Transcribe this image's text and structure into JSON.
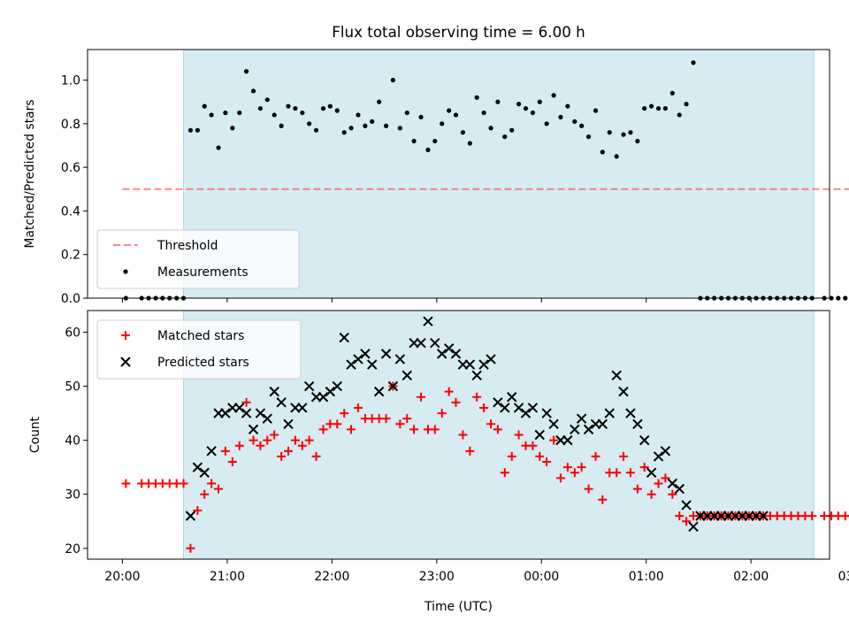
{
  "chart_data": [
    {
      "type": "scatter",
      "title": "Flux total observing time = 6.00 h",
      "xlabel": "",
      "ylabel": "Matched/Predicted stars",
      "xlim": [
        -0.333,
        6.75
      ],
      "ylim": [
        0,
        1.14
      ],
      "yticks": [
        0.0,
        0.2,
        0.4,
        0.6,
        0.8,
        1.0
      ],
      "ytick_labels": [
        "0.0",
        "0.2",
        "0.4",
        "0.6",
        "0.8",
        "1.0"
      ],
      "shaded_span": [
        0.583,
        6.6
      ],
      "legend": {
        "position": "lower-left",
        "entries": [
          "Threshold",
          "Measurements"
        ]
      },
      "series": [
        {
          "name": "Threshold",
          "style": "dashed-line",
          "color": "#ff6666",
          "x": [
            0.0,
            7.0
          ],
          "y": [
            0.5,
            0.5
          ]
        },
        {
          "name": "Measurements",
          "style": "dot",
          "color": "#000000",
          "x": [
            0.033,
            0.183,
            0.25,
            0.317,
            0.383,
            0.45,
            0.517,
            0.583,
            0.65,
            0.717,
            0.783,
            0.85,
            0.917,
            0.983,
            1.05,
            1.117,
            1.183,
            1.25,
            1.317,
            1.383,
            1.45,
            1.517,
            1.583,
            1.65,
            1.717,
            1.783,
            1.85,
            1.917,
            1.983,
            2.05,
            2.117,
            2.183,
            2.25,
            2.317,
            2.383,
            2.45,
            2.517,
            2.583,
            2.65,
            2.717,
            2.783,
            2.85,
            2.917,
            2.983,
            3.05,
            3.117,
            3.183,
            3.25,
            3.317,
            3.383,
            3.45,
            3.517,
            3.583,
            3.65,
            3.717,
            3.783,
            3.85,
            3.917,
            3.983,
            4.05,
            4.117,
            4.183,
            4.25,
            4.317,
            4.383,
            4.45,
            4.517,
            4.583,
            4.65,
            4.717,
            4.783,
            4.85,
            4.917,
            4.983,
            5.05,
            5.117,
            5.183,
            5.25,
            5.317,
            5.383,
            5.45,
            5.517,
            5.583,
            5.65,
            5.717,
            5.783,
            5.85,
            5.917,
            5.983,
            6.05,
            6.117,
            6.183,
            6.25,
            6.317,
            6.383,
            6.45,
            6.517,
            6.583,
            6.7,
            6.767,
            6.833,
            6.9,
            6.967,
            7.033
          ],
          "y": [
            0.0,
            0.0,
            0.0,
            0.0,
            0.0,
            0.0,
            0.0,
            0.0,
            0.77,
            0.77,
            0.88,
            0.84,
            0.69,
            0.85,
            0.78,
            0.85,
            1.04,
            0.95,
            0.87,
            0.91,
            0.84,
            0.79,
            0.88,
            0.87,
            0.85,
            0.8,
            0.77,
            0.87,
            0.88,
            0.86,
            0.76,
            0.78,
            0.84,
            0.79,
            0.81,
            0.9,
            0.79,
            1.0,
            0.78,
            0.85,
            0.72,
            0.83,
            0.68,
            0.72,
            0.8,
            0.86,
            0.84,
            0.76,
            0.71,
            0.92,
            0.85,
            0.78,
            0.9,
            0.74,
            0.77,
            0.89,
            0.87,
            0.85,
            0.9,
            0.8,
            0.93,
            0.83,
            0.88,
            0.81,
            0.79,
            0.74,
            0.86,
            0.67,
            0.76,
            0.65,
            0.75,
            0.76,
            0.72,
            0.87,
            0.88,
            0.87,
            0.87,
            0.94,
            0.84,
            0.89,
            1.08,
            0.0,
            0.0,
            0.0,
            0.0,
            0.0,
            0.0,
            0.0,
            0.0,
            0.0,
            0.0,
            0.0,
            0.0,
            0.0,
            0.0,
            0.0,
            0.0,
            0.0,
            0.0,
            0.0,
            0.0,
            0.0,
            0.0,
            0.0
          ]
        }
      ]
    },
    {
      "type": "scatter",
      "title": "",
      "xlabel": "Time (UTC)",
      "ylabel": "Count",
      "xlim": [
        -0.333,
        6.75
      ],
      "ylim": [
        18,
        64
      ],
      "yticks": [
        20,
        30,
        40,
        50,
        60
      ],
      "ytick_labels": [
        "20",
        "30",
        "40",
        "50",
        "60"
      ],
      "xticks": [
        0,
        1,
        2,
        3,
        4,
        5,
        6,
        7
      ],
      "xtick_labels": [
        "20:00",
        "21:00",
        "22:00",
        "23:00",
        "00:00",
        "01:00",
        "02:00",
        "03:00"
      ],
      "shaded_span": [
        0.583,
        6.6
      ],
      "legend": {
        "position": "upper-left",
        "entries": [
          "Matched stars",
          "Predicted stars"
        ]
      },
      "series": [
        {
          "name": "Matched stars",
          "style": "plus",
          "color": "#ff0000",
          "x": [
            0.033,
            0.183,
            0.25,
            0.317,
            0.383,
            0.45,
            0.517,
            0.583,
            0.65,
            0.717,
            0.783,
            0.85,
            0.917,
            0.983,
            1.05,
            1.117,
            1.183,
            1.25,
            1.317,
            1.383,
            1.45,
            1.517,
            1.583,
            1.65,
            1.717,
            1.783,
            1.85,
            1.917,
            1.983,
            2.05,
            2.117,
            2.183,
            2.25,
            2.317,
            2.383,
            2.45,
            2.517,
            2.583,
            2.65,
            2.717,
            2.783,
            2.85,
            2.917,
            2.983,
            3.05,
            3.117,
            3.183,
            3.25,
            3.317,
            3.383,
            3.45,
            3.517,
            3.583,
            3.65,
            3.717,
            3.783,
            3.85,
            3.917,
            3.983,
            4.05,
            4.117,
            4.183,
            4.25,
            4.317,
            4.383,
            4.45,
            4.517,
            4.583,
            4.65,
            4.717,
            4.783,
            4.85,
            4.917,
            4.983,
            5.05,
            5.117,
            5.183,
            5.25,
            5.317,
            5.383,
            5.45,
            5.517,
            5.583,
            5.65,
            5.717,
            5.783,
            5.85,
            5.917,
            5.983,
            6.05,
            6.117,
            6.183,
            6.25,
            6.317,
            6.383,
            6.45,
            6.517,
            6.583,
            6.7,
            6.767,
            6.833,
            6.9,
            6.967,
            7.033
          ],
          "y": [
            32,
            32,
            32,
            32,
            32,
            32,
            32,
            32,
            20,
            27,
            30,
            32,
            31,
            38,
            36,
            39,
            47,
            40,
            39,
            40,
            41,
            37,
            38,
            40,
            39,
            40,
            37,
            42,
            43,
            43,
            45,
            42,
            46,
            44,
            44,
            44,
            44,
            50,
            43,
            44,
            42,
            48,
            42,
            42,
            45,
            49,
            47,
            41,
            38,
            48,
            46,
            43,
            42,
            34,
            37,
            41,
            39,
            39,
            37,
            36,
            40,
            33,
            35,
            34,
            35,
            31,
            37,
            29,
            34,
            34,
            37,
            34,
            31,
            35,
            30,
            32,
            33,
            30,
            26,
            25,
            26,
            26,
            26,
            26,
            26,
            26,
            26,
            26,
            26,
            26,
            26,
            26,
            26,
            26,
            26,
            26,
            26,
            26,
            26,
            26,
            26,
            26,
            26,
            26
          ]
        },
        {
          "name": "Predicted stars",
          "style": "x",
          "color": "#000000",
          "x": [
            0.65,
            0.717,
            0.783,
            0.85,
            0.917,
            0.983,
            1.05,
            1.117,
            1.183,
            1.25,
            1.317,
            1.383,
            1.45,
            1.517,
            1.583,
            1.65,
            1.717,
            1.783,
            1.85,
            1.917,
            1.983,
            2.05,
            2.117,
            2.183,
            2.25,
            2.317,
            2.383,
            2.45,
            2.517,
            2.583,
            2.65,
            2.717,
            2.783,
            2.85,
            2.917,
            2.983,
            3.05,
            3.117,
            3.183,
            3.25,
            3.317,
            3.383,
            3.45,
            3.517,
            3.583,
            3.65,
            3.717,
            3.783,
            3.85,
            3.917,
            3.983,
            4.05,
            4.117,
            4.183,
            4.25,
            4.317,
            4.383,
            4.45,
            4.517,
            4.583,
            4.65,
            4.717,
            4.783,
            4.85,
            4.917,
            4.983,
            5.05,
            5.117,
            5.183,
            5.25,
            5.317,
            5.383,
            5.45,
            5.517,
            5.583,
            5.65,
            5.717,
            5.783,
            5.85,
            5.917,
            5.983,
            6.05,
            6.117
          ],
          "y": [
            26,
            35,
            34,
            38,
            45,
            45,
            46,
            46,
            45,
            42,
            45,
            44,
            49,
            47,
            43,
            46,
            46,
            50,
            48,
            48,
            49,
            50,
            59,
            54,
            55,
            56,
            54,
            49,
            56,
            50,
            55,
            52,
            58,
            58,
            62,
            58,
            56,
            57,
            56,
            54,
            54,
            52,
            54,
            55,
            47,
            46,
            48,
            46,
            45,
            46,
            41,
            45,
            43,
            40,
            40,
            42,
            44,
            42,
            43,
            43,
            45,
            52,
            49,
            45,
            43,
            40,
            34,
            37,
            38,
            32,
            31,
            28,
            24,
            26,
            26,
            26,
            26,
            26,
            26,
            26,
            26,
            26,
            26
          ]
        }
      ]
    }
  ]
}
